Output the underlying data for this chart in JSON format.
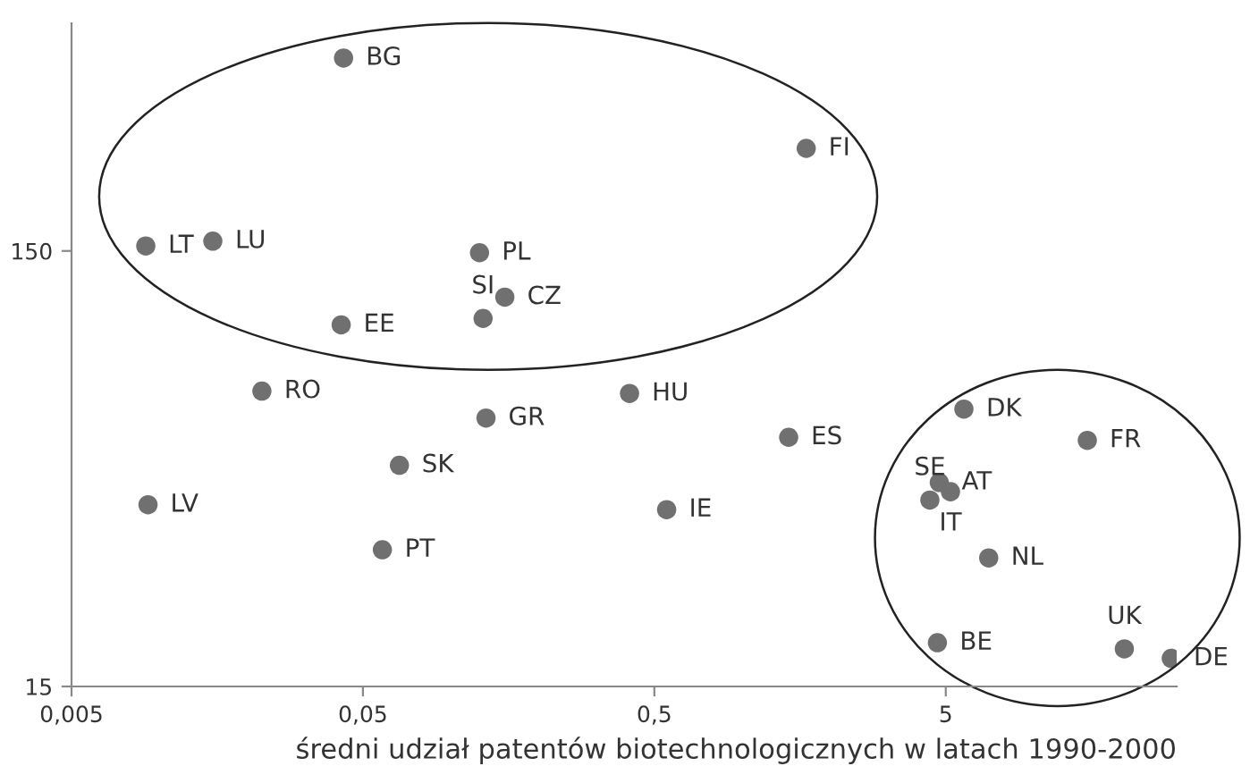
{
  "chart_data": {
    "type": "scatter",
    "xlabel": "średni udział patentów biotechnologicznych w latach 1990-2000",
    "log": "xy",
    "marker": "circle",
    "grid": false,
    "xlim": [
      0.005,
      31
    ],
    "ylim": [
      15,
      500
    ],
    "xticks": [
      {
        "value": 0.005,
        "label": "0,005"
      },
      {
        "value": 0.05,
        "label": "0,05"
      },
      {
        "value": 0.5,
        "label": "0,5"
      },
      {
        "value": 5,
        "label": "5"
      }
    ],
    "yticks": [
      15,
      150
    ],
    "series": [
      {
        "color": "#707070",
        "x": [
          0.0429,
          0.00899,
          0.01527,
          0.1256,
          0.1534,
          0.1292,
          0.0421,
          0.0225,
          0.1322,
          0.0667,
          0.00915,
          0.0583,
          1.66,
          0.411,
          1.445,
          0.551,
          5.77,
          15.3,
          4.75,
          5.19,
          4.41,
          7.02,
          4.68,
          20.5,
          29.7
        ],
        "values": [
          416,
          154,
          158,
          148.6,
          117.5,
          105,
          101.5,
          71.5,
          62,
          48.3,
          39.2,
          30.9,
          258,
          70.6,
          56,
          38.2,
          65,
          55.1,
          44.1,
          42,
          40.2,
          29.6,
          18.9,
          18.3,
          17.4
        ]
      }
    ],
    "annotations": [
      {
        "text": "BG",
        "x": 0.0429,
        "y": 416
      },
      {
        "text": "LT",
        "x": 0.00899,
        "y": 154
      },
      {
        "text": "LU",
        "x": 0.01527,
        "y": 158
      },
      {
        "text": "PL",
        "x": 0.1256,
        "y": 148.6
      },
      {
        "text": "CZ",
        "x": 0.1534,
        "y": 117.5
      },
      {
        "text": "SI",
        "x": 0.1292,
        "y": 105
      },
      {
        "text": "EE",
        "x": 0.0421,
        "y": 101.5
      },
      {
        "text": "RO",
        "x": 0.0225,
        "y": 71.5
      },
      {
        "text": "GR",
        "x": 0.1322,
        "y": 62
      },
      {
        "text": "SK",
        "x": 0.0667,
        "y": 48.3
      },
      {
        "text": "LV",
        "x": 0.00915,
        "y": 39.2
      },
      {
        "text": "PT",
        "x": 0.0583,
        "y": 30.9
      },
      {
        "text": "FI",
        "x": 1.66,
        "y": 258
      },
      {
        "text": "HU",
        "x": 0.411,
        "y": 70.6
      },
      {
        "text": "ES",
        "x": 1.445,
        "y": 56
      },
      {
        "text": "IE",
        "x": 0.551,
        "y": 38.2
      },
      {
        "text": "DK",
        "x": 5.77,
        "y": 65
      },
      {
        "text": "FR",
        "x": 15.3,
        "y": 55.1
      },
      {
        "text": "AT",
        "x": 4.75,
        "y": 44.1
      },
      {
        "text": "IT",
        "x": 5.19,
        "y": 42
      },
      {
        "text": "SE",
        "x": 4.41,
        "y": 40.2
      },
      {
        "text": "NL",
        "x": 7.02,
        "y": 29.6
      },
      {
        "text": "BE",
        "x": 4.68,
        "y": 18.9
      },
      {
        "text": "UK",
        "x": 20.5,
        "y": 18.3
      },
      {
        "text": "DE",
        "x": 29.7,
        "y": 17.4
      }
    ]
  }
}
